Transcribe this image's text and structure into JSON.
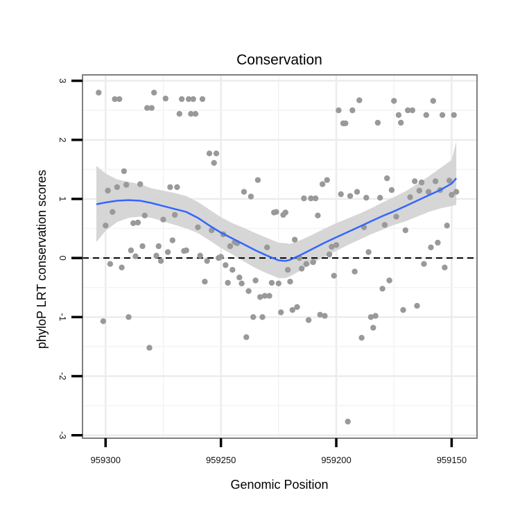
{
  "chart_data": {
    "type": "scatter",
    "title": "Conservation",
    "xlabel": "Genomic Position",
    "ylabel": "phyloP LRT conservation scores",
    "x_reversed": true,
    "xlim": [
      959310,
      959139
    ],
    "ylim": [
      -3.05,
      3.1
    ],
    "x_ticks": [
      959300,
      959250,
      959200,
      959150
    ],
    "y_ticks": [
      -3,
      -2,
      -1,
      0,
      1,
      2,
      3
    ],
    "grid": true,
    "reference_line": {
      "y": 0,
      "style": "dashed"
    },
    "colors": {
      "points": "#999999",
      "smooth": "#3366ff",
      "band": "#d4d4d4",
      "panel_border": "#7f7f7f",
      "grid": "#ececec"
    },
    "points": [
      [
        959303,
        2.8
      ],
      [
        959301,
        -1.07
      ],
      [
        959300,
        0.55
      ],
      [
        959299,
        1.14
      ],
      [
        959298,
        -0.1
      ],
      [
        959297,
        0.78
      ],
      [
        959296,
        2.69
      ],
      [
        959295,
        1.2
      ],
      [
        959294,
        2.69
      ],
      [
        959293,
        -0.16
      ],
      [
        959292,
        1.47
      ],
      [
        959291,
        1.24
      ],
      [
        959290,
        -1.0
      ],
      [
        959289,
        0.13
      ],
      [
        959288,
        0.59
      ],
      [
        959287,
        0.03
      ],
      [
        959286,
        0.6
      ],
      [
        959285,
        1.25
      ],
      [
        959284,
        0.2
      ],
      [
        959283,
        0.72
      ],
      [
        959282,
        2.54
      ],
      [
        959281,
        -1.52
      ],
      [
        959280,
        2.54
      ],
      [
        959279,
        2.8
      ],
      [
        959278,
        0.04
      ],
      [
        959277,
        0.2
      ],
      [
        959276,
        -0.05
      ],
      [
        959275,
        0.65
      ],
      [
        959274,
        2.7
      ],
      [
        959273,
        0.1
      ],
      [
        959272,
        1.2
      ],
      [
        959271,
        0.3
      ],
      [
        959270,
        0.73
      ],
      [
        959269,
        1.2
      ],
      [
        959268,
        2.44
      ],
      [
        959267,
        2.69
      ],
      [
        959266,
        0.12
      ],
      [
        959265,
        0.13
      ],
      [
        959264,
        2.69
      ],
      [
        959263,
        2.44
      ],
      [
        959262,
        2.69
      ],
      [
        959261,
        2.44
      ],
      [
        959260,
        0.52
      ],
      [
        959259,
        0.04
      ],
      [
        959258,
        2.69
      ],
      [
        959257,
        -0.4
      ],
      [
        959256,
        -0.05
      ],
      [
        959255,
        1.77
      ],
      [
        959254,
        0.47
      ],
      [
        959253,
        1.61
      ],
      [
        959252,
        1.77
      ],
      [
        959251,
        0.0
      ],
      [
        959250,
        0.02
      ],
      [
        959249,
        0.4
      ],
      [
        959248,
        -0.12
      ],
      [
        959247,
        -0.42
      ],
      [
        959246,
        0.2
      ],
      [
        959245,
        -0.2
      ],
      [
        959244,
        0.27
      ],
      [
        959243,
        0.25
      ],
      [
        959242,
        -0.33
      ],
      [
        959241,
        -0.43
      ],
      [
        959240,
        1.12
      ],
      [
        959239,
        -1.34
      ],
      [
        959238,
        -0.56
      ],
      [
        959237,
        1.04
      ],
      [
        959236,
        -1.0
      ],
      [
        959235,
        -0.38
      ],
      [
        959234,
        1.32
      ],
      [
        959233,
        -0.66
      ],
      [
        959232,
        -1.0
      ],
      [
        959231,
        -0.64
      ],
      [
        959230,
        0.18
      ],
      [
        959229,
        -0.64
      ],
      [
        959228,
        -0.42
      ],
      [
        959227,
        0.77
      ],
      [
        959226,
        0.78
      ],
      [
        959225,
        -0.43
      ],
      [
        959224,
        -0.92
      ],
      [
        959223,
        0.73
      ],
      [
        959222,
        0.77
      ],
      [
        959221,
        -0.2
      ],
      [
        959220,
        -0.4
      ],
      [
        959219,
        -0.88
      ],
      [
        959218,
        0.31
      ],
      [
        959217,
        -0.83
      ],
      [
        959216,
        0.0
      ],
      [
        959215,
        -0.18
      ],
      [
        959214,
        1.01
      ],
      [
        959213,
        -0.1
      ],
      [
        959212,
        -1.05
      ],
      [
        959211,
        1.01
      ],
      [
        959210,
        -0.07
      ],
      [
        959209,
        1.01
      ],
      [
        959208,
        0.72
      ],
      [
        959207,
        -0.96
      ],
      [
        959206,
        1.25
      ],
      [
        959205,
        -0.98
      ],
      [
        959204,
        1.32
      ],
      [
        959203,
        0.06
      ],
      [
        959202,
        0.19
      ],
      [
        959201,
        -0.3
      ],
      [
        959200,
        0.22
      ],
      [
        959199,
        2.5
      ],
      [
        959198,
        1.08
      ],
      [
        959197,
        2.28
      ],
      [
        959196,
        2.28
      ],
      [
        959195,
        -2.77
      ],
      [
        959194,
        1.05
      ],
      [
        959193,
        2.5
      ],
      [
        959192,
        -0.23
      ],
      [
        959191,
        1.12
      ],
      [
        959190,
        2.67
      ],
      [
        959189,
        -1.35
      ],
      [
        959188,
        0.52
      ],
      [
        959187,
        1.02
      ],
      [
        959186,
        0.1
      ],
      [
        959185,
        -1.0
      ],
      [
        959184,
        -1.18
      ],
      [
        959183,
        -0.98
      ],
      [
        959182,
        2.29
      ],
      [
        959181,
        1.02
      ],
      [
        959180,
        -0.52
      ],
      [
        959179,
        0.56
      ],
      [
        959178,
        1.35
      ],
      [
        959177,
        -0.38
      ],
      [
        959176,
        1.15
      ],
      [
        959175,
        2.66
      ],
      [
        959174,
        0.7
      ],
      [
        959173,
        2.42
      ],
      [
        959172,
        2.29
      ],
      [
        959171,
        -0.88
      ],
      [
        959170,
        0.47
      ],
      [
        959169,
        2.5
      ],
      [
        959168,
        1.03
      ],
      [
        959167,
        2.5
      ],
      [
        959166,
        1.3
      ],
      [
        959165,
        -0.81
      ],
      [
        959164,
        1.14
      ],
      [
        959163,
        1.28
      ],
      [
        959162,
        -0.1
      ],
      [
        959161,
        2.42
      ],
      [
        959160,
        1.12
      ],
      [
        959159,
        0.18
      ],
      [
        959158,
        2.66
      ],
      [
        959157,
        1.3
      ],
      [
        959156,
        0.26
      ],
      [
        959155,
        1.15
      ],
      [
        959154,
        2.42
      ],
      [
        959153,
        -0.16
      ],
      [
        959152,
        0.55
      ],
      [
        959151,
        1.31
      ],
      [
        959150,
        1.07
      ],
      [
        959149,
        2.42
      ],
      [
        959148,
        1.12
      ]
    ],
    "smooth": [
      [
        959304,
        0.91
      ],
      [
        959300,
        0.94
      ],
      [
        959295,
        0.97
      ],
      [
        959290,
        0.98
      ],
      [
        959285,
        0.97
      ],
      [
        959280,
        0.93
      ],
      [
        959275,
        0.88
      ],
      [
        959270,
        0.83
      ],
      [
        959265,
        0.78
      ],
      [
        959260,
        0.68
      ],
      [
        959255,
        0.55
      ],
      [
        959250,
        0.43
      ],
      [
        959245,
        0.33
      ],
      [
        959240,
        0.23
      ],
      [
        959235,
        0.13
      ],
      [
        959230,
        0.04
      ],
      [
        959225,
        -0.04
      ],
      [
        959222,
        -0.05
      ],
      [
        959220,
        -0.03
      ],
      [
        959215,
        0.06
      ],
      [
        959210,
        0.16
      ],
      [
        959205,
        0.26
      ],
      [
        959200,
        0.35
      ],
      [
        959195,
        0.44
      ],
      [
        959190,
        0.53
      ],
      [
        959185,
        0.62
      ],
      [
        959180,
        0.71
      ],
      [
        959175,
        0.79
      ],
      [
        959170,
        0.88
      ],
      [
        959165,
        0.97
      ],
      [
        959160,
        1.06
      ],
      [
        959155,
        1.15
      ],
      [
        959150,
        1.26
      ],
      [
        959148,
        1.35
      ]
    ],
    "band": [
      [
        959304,
        0.27,
        1.56
      ],
      [
        959300,
        0.46,
        1.43
      ],
      [
        959295,
        0.61,
        1.33
      ],
      [
        959290,
        0.68,
        1.29
      ],
      [
        959285,
        0.7,
        1.25
      ],
      [
        959280,
        0.68,
        1.18
      ],
      [
        959275,
        0.62,
        1.14
      ],
      [
        959270,
        0.56,
        1.1
      ],
      [
        959265,
        0.5,
        1.05
      ],
      [
        959260,
        0.42,
        0.95
      ],
      [
        959255,
        0.3,
        0.82
      ],
      [
        959250,
        0.17,
        0.69
      ],
      [
        959245,
        0.06,
        0.59
      ],
      [
        959240,
        -0.06,
        0.51
      ],
      [
        959235,
        -0.17,
        0.42
      ],
      [
        959230,
        -0.26,
        0.34
      ],
      [
        959225,
        -0.34,
        0.26
      ],
      [
        959222,
        -0.34,
        0.25
      ],
      [
        959220,
        -0.31,
        0.24
      ],
      [
        959215,
        -0.2,
        0.31
      ],
      [
        959210,
        -0.08,
        0.4
      ],
      [
        959205,
        0.02,
        0.5
      ],
      [
        959200,
        0.12,
        0.59
      ],
      [
        959195,
        0.22,
        0.67
      ],
      [
        959190,
        0.31,
        0.75
      ],
      [
        959185,
        0.4,
        0.84
      ],
      [
        959180,
        0.48,
        0.94
      ],
      [
        959175,
        0.56,
        1.03
      ],
      [
        959170,
        0.62,
        1.13
      ],
      [
        959165,
        0.7,
        1.25
      ],
      [
        959160,
        0.78,
        1.38
      ],
      [
        959155,
        0.84,
        1.52
      ],
      [
        959150,
        0.88,
        1.66
      ],
      [
        959148,
        0.9,
        1.97
      ]
    ]
  }
}
